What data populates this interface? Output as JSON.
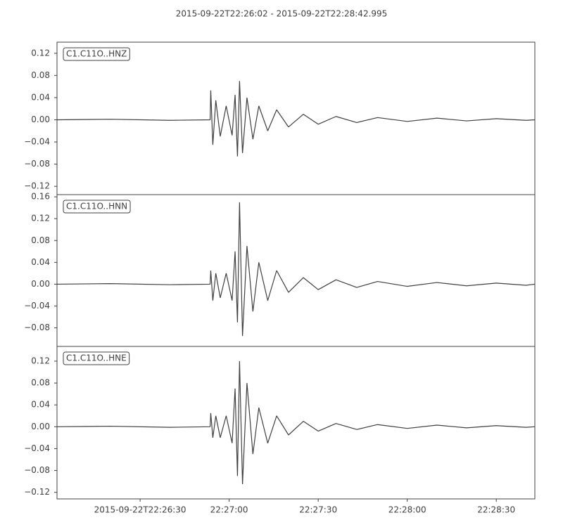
{
  "chart_data": [
    {
      "type": "line",
      "title": "2015-09-22T22:26:02  -  2015-09-22T22:28:42.995",
      "xlim": [
        "2015-09-22T22:26:02",
        "2015-09-22T22:28:42.995"
      ],
      "x": [
        "2015-09-22T22:26:02",
        "2015-09-22T22:26:20",
        "2015-09-22T22:26:40",
        "2015-09-22T22:26:53.6",
        "2015-09-22T22:26:53.8",
        "2015-09-22T22:26:54.5",
        "2015-09-22T22:26:55.5",
        "2015-09-22T22:26:57",
        "2015-09-22T22:26:59",
        "2015-09-22T22:27:01",
        "2015-09-22T22:27:02",
        "2015-09-22T22:27:02.8",
        "2015-09-22T22:27:03.5",
        "2015-09-22T22:27:04.5",
        "2015-09-22T22:27:06",
        "2015-09-22T22:27:08",
        "2015-09-22T22:27:10",
        "2015-09-22T22:27:13",
        "2015-09-22T22:27:16",
        "2015-09-22T22:27:20",
        "2015-09-22T22:27:25",
        "2015-09-22T22:27:30",
        "2015-09-22T22:27:36",
        "2015-09-22T22:27:43",
        "2015-09-22T22:27:50",
        "2015-09-22T22:28:00",
        "2015-09-22T22:28:10",
        "2015-09-22T22:28:20",
        "2015-09-22T22:28:30",
        "2015-09-22T22:28:40",
        "2015-09-22T22:28:42.995"
      ],
      "series": [
        {
          "name": "C1.C11O..HNZ",
          "color": "#404040",
          "values": [
            0,
            0.001,
            -0.001,
            0,
            0.053,
            -0.045,
            0.035,
            -0.03,
            0.025,
            -0.028,
            0.045,
            -0.066,
            0.07,
            -0.06,
            0.04,
            -0.035,
            0.025,
            -0.02,
            0.018,
            -0.013,
            0.01,
            -0.008,
            0.006,
            -0.005,
            0.004,
            -0.003,
            0.003,
            -0.002,
            0.002,
            -0.001,
            0
          ]
        }
      ],
      "ylim": [
        -0.135,
        0.14
      ],
      "yticks": [
        {
          "value": -0.12,
          "label": "−0.12"
        },
        {
          "value": -0.08,
          "label": "−0.08"
        },
        {
          "value": -0.04,
          "label": "−0.04"
        },
        {
          "value": 0,
          "label": "0.00"
        },
        {
          "value": 0.04,
          "label": "0.04"
        },
        {
          "value": 0.08,
          "label": "0.08"
        },
        {
          "value": 0.12,
          "label": "0.12"
        }
      ]
    },
    {
      "type": "line",
      "xlim": [
        "2015-09-22T22:26:02",
        "2015-09-22T22:28:42.995"
      ],
      "x": [
        "2015-09-22T22:26:02",
        "2015-09-22T22:26:20",
        "2015-09-22T22:26:40",
        "2015-09-22T22:26:53.6",
        "2015-09-22T22:26:53.8",
        "2015-09-22T22:26:54.5",
        "2015-09-22T22:26:55.5",
        "2015-09-22T22:26:57",
        "2015-09-22T22:26:59",
        "2015-09-22T22:27:01",
        "2015-09-22T22:27:02",
        "2015-09-22T22:27:02.8",
        "2015-09-22T22:27:03.5",
        "2015-09-22T22:27:04.5",
        "2015-09-22T22:27:06",
        "2015-09-22T22:27:08",
        "2015-09-22T22:27:10",
        "2015-09-22T22:27:13",
        "2015-09-22T22:27:16",
        "2015-09-22T22:27:20",
        "2015-09-22T22:27:25",
        "2015-09-22T22:27:30",
        "2015-09-22T22:27:36",
        "2015-09-22T22:27:43",
        "2015-09-22T22:27:50",
        "2015-09-22T22:28:00",
        "2015-09-22T22:28:10",
        "2015-09-22T22:28:20",
        "2015-09-22T22:28:30",
        "2015-09-22T22:28:40",
        "2015-09-22T22:28:42.995"
      ],
      "series": [
        {
          "name": "C1.C11O..HNN",
          "color": "#404040",
          "values": [
            0,
            0.001,
            -0.001,
            0,
            0.025,
            -0.03,
            0.02,
            -0.025,
            0.02,
            -0.03,
            0.06,
            -0.07,
            0.15,
            -0.095,
            0.07,
            -0.05,
            0.04,
            -0.03,
            0.025,
            -0.015,
            0.012,
            -0.01,
            0.008,
            -0.006,
            0.005,
            -0.004,
            0.003,
            -0.003,
            0.002,
            -0.002,
            0
          ]
        }
      ],
      "ylim": [
        -0.114,
        0.164
      ],
      "yticks": [
        {
          "value": -0.08,
          "label": "−0.08"
        },
        {
          "value": -0.04,
          "label": "−0.04"
        },
        {
          "value": 0,
          "label": "0.00"
        },
        {
          "value": 0.04,
          "label": "0.04"
        },
        {
          "value": 0.08,
          "label": "0.08"
        },
        {
          "value": 0.12,
          "label": "0.12"
        },
        {
          "value": 0.16,
          "label": "0.16"
        }
      ]
    },
    {
      "type": "line",
      "xlim": [
        "2015-09-22T22:26:02",
        "2015-09-22T22:28:42.995"
      ],
      "x": [
        "2015-09-22T22:26:02",
        "2015-09-22T22:26:20",
        "2015-09-22T22:26:40",
        "2015-09-22T22:26:53.6",
        "2015-09-22T22:26:53.8",
        "2015-09-22T22:26:54.5",
        "2015-09-22T22:26:55.5",
        "2015-09-22T22:26:57",
        "2015-09-22T22:26:59",
        "2015-09-22T22:27:01",
        "2015-09-22T22:27:02",
        "2015-09-22T22:27:02.8",
        "2015-09-22T22:27:03.5",
        "2015-09-22T22:27:04.5",
        "2015-09-22T22:27:06",
        "2015-09-22T22:27:08",
        "2015-09-22T22:27:10",
        "2015-09-22T22:27:13",
        "2015-09-22T22:27:16",
        "2015-09-22T22:27:20",
        "2015-09-22T22:27:25",
        "2015-09-22T22:27:30",
        "2015-09-22T22:27:36",
        "2015-09-22T22:27:43",
        "2015-09-22T22:27:50",
        "2015-09-22T22:28:00",
        "2015-09-22T22:28:10",
        "2015-09-22T22:28:20",
        "2015-09-22T22:28:30",
        "2015-09-22T22:28:40",
        "2015-09-22T22:28:42.995"
      ],
      "series": [
        {
          "name": "C1.C11O..HNE",
          "color": "#404040",
          "values": [
            0,
            0.001,
            -0.001,
            0,
            0.025,
            -0.02,
            0.02,
            -0.02,
            0.02,
            -0.03,
            0.07,
            -0.09,
            0.12,
            -0.105,
            0.08,
            -0.05,
            0.035,
            -0.03,
            0.02,
            -0.015,
            0.01,
            -0.008,
            0.006,
            -0.005,
            0.004,
            -0.003,
            0.003,
            -0.002,
            0.002,
            -0.001,
            0
          ]
        }
      ],
      "ylim": [
        -0.132,
        0.147
      ],
      "yticks": [
        {
          "value": -0.12,
          "label": "−0.12"
        },
        {
          "value": -0.08,
          "label": "−0.08"
        },
        {
          "value": -0.04,
          "label": "−0.04"
        },
        {
          "value": 0,
          "label": "0.00"
        },
        {
          "value": 0.04,
          "label": "0.04"
        },
        {
          "value": 0.08,
          "label": "0.08"
        },
        {
          "value": 0.12,
          "label": "0.12"
        }
      ],
      "xticks": [
        "2015-09-22T22:26:30",
        {
          "value": "2015-09-22T22:27:00",
          "label": "22:27:00"
        },
        {
          "value": "2015-09-22T22:27:30",
          "label": "22:27:30"
        },
        {
          "value": "2015-09-22T22:28:00",
          "label": "22:28:00"
        },
        {
          "value": "2015-09-22T22:28:30",
          "label": "22:28:30"
        }
      ]
    }
  ]
}
